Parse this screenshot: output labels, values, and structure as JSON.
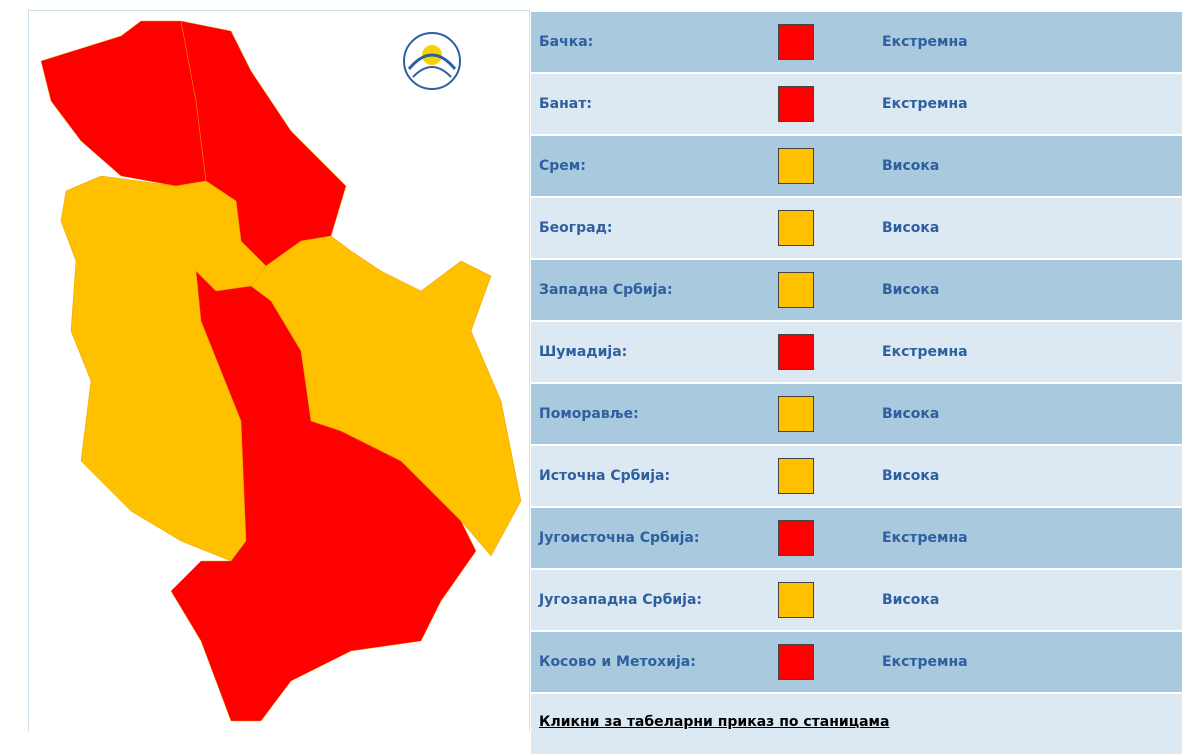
{
  "regions": [
    {
      "name": "Бачка:",
      "level": "Екстремна",
      "color": "#ff0000"
    },
    {
      "name": "Банат:",
      "level": "Екстремна",
      "color": "#ff0000"
    },
    {
      "name": "Срем:",
      "level": "Висока",
      "color": "#ffc000"
    },
    {
      "name": "Београд:",
      "level": "Висока",
      "color": "#ffc000"
    },
    {
      "name": "Западна Србија:",
      "level": "Висока",
      "color": "#ffc000"
    },
    {
      "name": "Шумадија:",
      "level": "Екстремна",
      "color": "#ff0000"
    },
    {
      "name": "Поморавље:",
      "level": "Висока",
      "color": "#ffc000"
    },
    {
      "name": "Источна Србија:",
      "level": "Висока",
      "color": "#ffc000"
    },
    {
      "name": "Југоисточна Србија:",
      "level": "Екстремна",
      "color": "#ff0000"
    },
    {
      "name": "Југозападна Србија:",
      "level": "Висока",
      "color": "#ffc000"
    },
    {
      "name": "Косово и Метохија:",
      "level": "Екстремна",
      "color": "#ff0000"
    }
  ],
  "footer": "Кликни за табеларни приказ по станицама"
}
